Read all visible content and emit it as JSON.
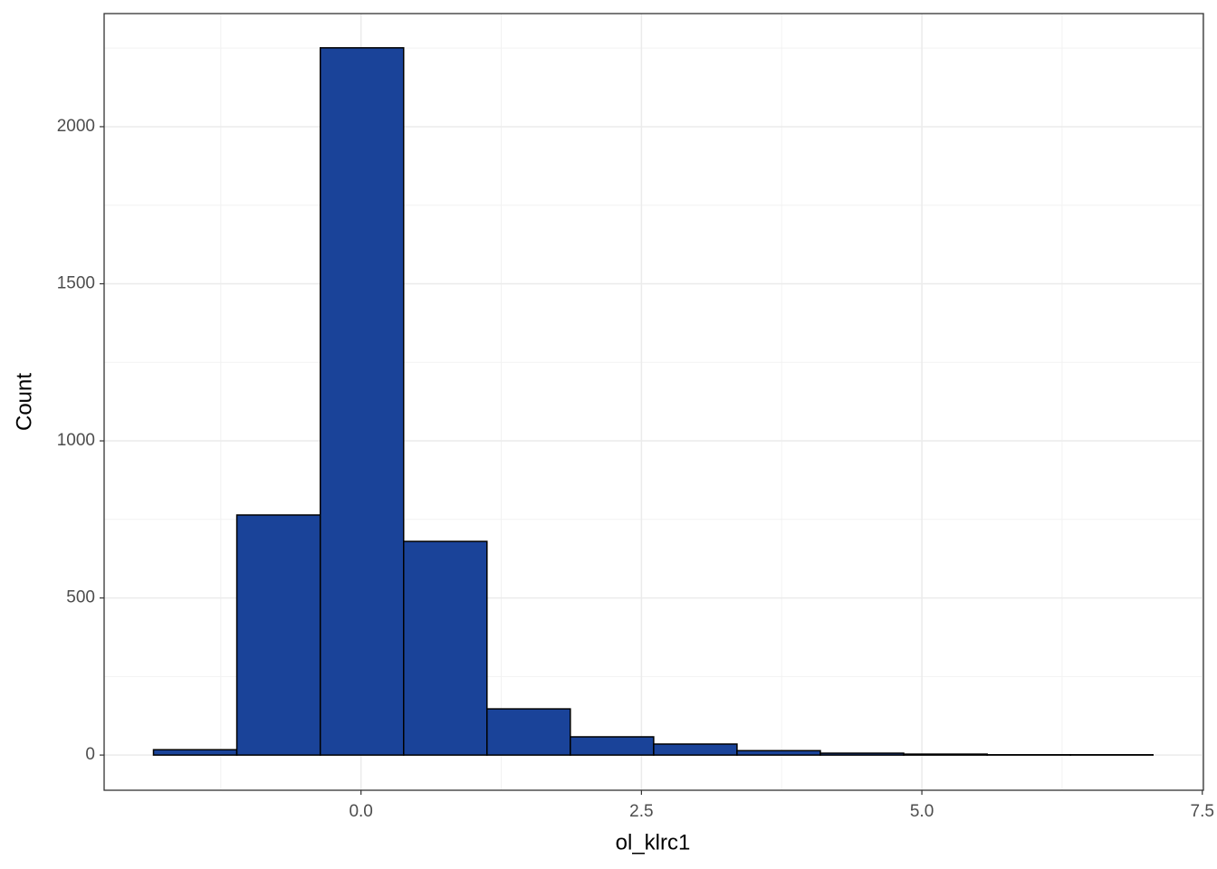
{
  "chart_data": {
    "type": "histogram",
    "xlabel": "ol_klrc1",
    "ylabel": "Count",
    "bins": [
      -1.85,
      -1.107,
      -0.363,
      0.38,
      1.123,
      1.866,
      2.609,
      3.352,
      4.095,
      4.838,
      5.582,
      6.325,
      7.06
    ],
    "values": [
      17,
      764,
      2251,
      680,
      147,
      58,
      35,
      14,
      6,
      3,
      1,
      1
    ],
    "color": "#1a4399",
    "edgecolor": "#000000",
    "xlim": [
      -2.29,
      7.51
    ],
    "ylim": [
      -112,
      2360
    ],
    "xticks": [
      {
        "value": 0,
        "label": "0.0"
      },
      {
        "value": 2.5,
        "label": "2.5"
      },
      {
        "value": 5,
        "label": "5.0"
      },
      {
        "value": 7.5,
        "label": "7.5"
      }
    ],
    "yticks": [
      0,
      500,
      1000,
      1500,
      2000
    ],
    "grid": true
  }
}
